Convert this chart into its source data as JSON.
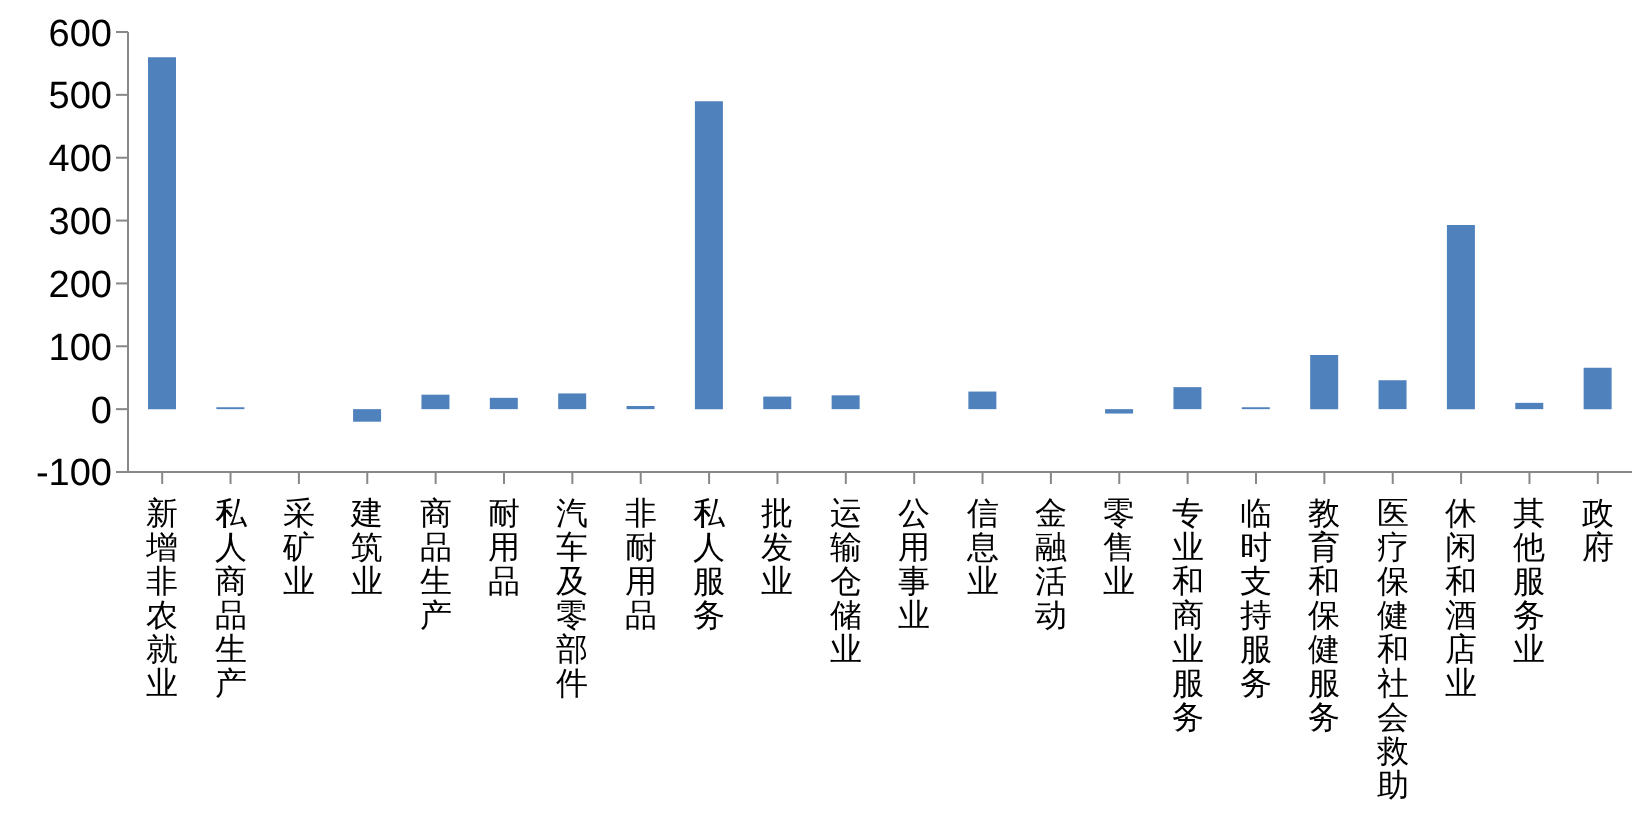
{
  "chart_data": {
    "type": "bar",
    "categories": [
      "新增非农就业",
      "私人商品生产",
      "采矿业",
      "建筑业",
      "商品生产",
      "耐用品",
      "汽车及零部件",
      "非耐用品",
      "私人服务",
      "批发业",
      "运输仓储业",
      "公用事业",
      "信息业",
      "金融活动",
      "零售业",
      "专业和商业服务",
      "临时支持服务",
      "教育和保健服务",
      "医疗保健和社会救助",
      "休闲和酒店业",
      "其他服务业",
      "政府"
    ],
    "values": [
      560,
      3,
      0,
      -20,
      23,
      18,
      25,
      5,
      490,
      20,
      22,
      0,
      28,
      0,
      -7,
      35,
      3,
      86,
      46,
      293,
      10,
      66
    ],
    "color": "#4f81bd",
    "ylim": [
      -100,
      600
    ],
    "yticks": [
      -100,
      0,
      100,
      200,
      300,
      400,
      500,
      600
    ],
    "grid": false,
    "legend": false
  }
}
